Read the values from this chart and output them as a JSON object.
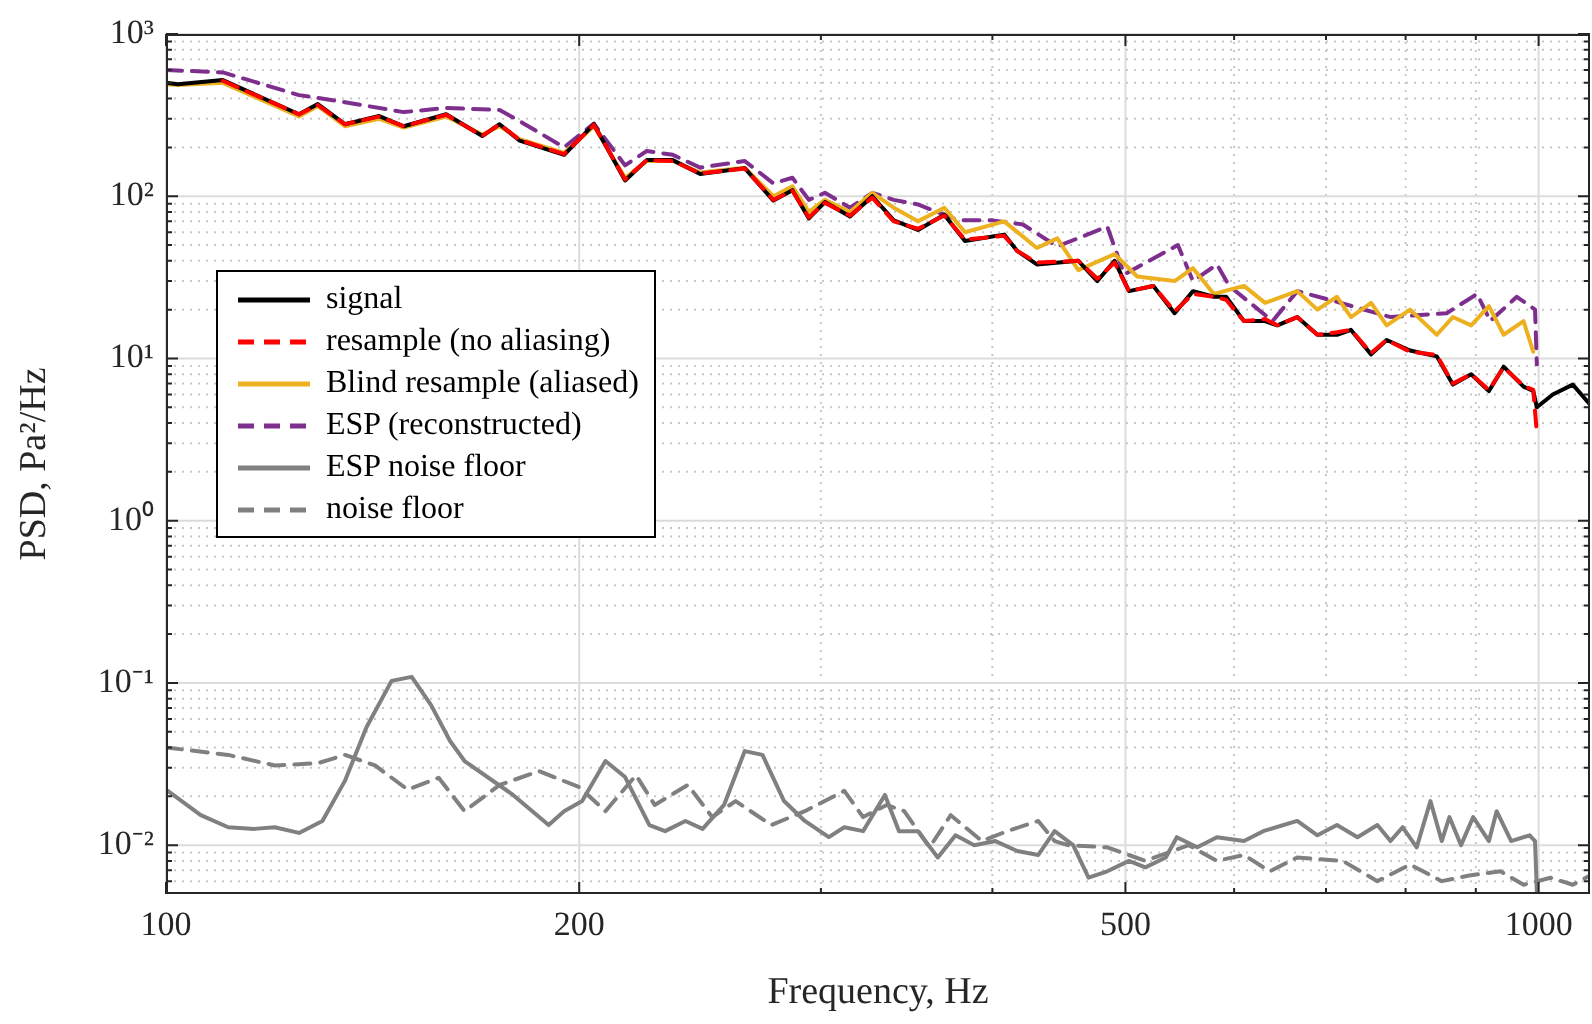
{
  "chart_data": {
    "type": "line",
    "xlabel": "Frequency, Hz",
    "ylabel": "PSD, Pa²/Hz",
    "log": "xy",
    "grid": true,
    "legend": "left",
    "marker": "none",
    "xlim": [
      100,
      1090
    ],
    "ylim": [
      0.005,
      1000
    ],
    "xticks": [
      100,
      200,
      {
        "value": 300,
        "label": null
      },
      {
        "value": 400,
        "label": null
      },
      500,
      {
        "value": 600,
        "label": null
      },
      {
        "value": 700,
        "label": null
      },
      {
        "value": 800,
        "label": null
      },
      {
        "value": 900,
        "label": null
      },
      1000
    ],
    "yticks": [
      {
        "value": 0.006,
        "label": null
      },
      {
        "value": 0.007,
        "label": null
      },
      {
        "value": 0.008,
        "label": null
      },
      {
        "value": 0.009,
        "label": null
      },
      {
        "value": 0.01,
        "label": "10⁻²"
      },
      {
        "value": 0.02,
        "label": null
      },
      {
        "value": 0.03,
        "label": null
      },
      {
        "value": 0.04,
        "label": null
      },
      {
        "value": 0.05,
        "label": null
      },
      {
        "value": 0.06,
        "label": null
      },
      {
        "value": 0.07,
        "label": null
      },
      {
        "value": 0.08,
        "label": null
      },
      {
        "value": 0.09,
        "label": null
      },
      {
        "value": 0.1,
        "label": "10⁻¹"
      },
      {
        "value": 0.2,
        "label": null
      },
      {
        "value": 0.3,
        "label": null
      },
      {
        "value": 0.4,
        "label": null
      },
      {
        "value": 0.5,
        "label": null
      },
      {
        "value": 0.6,
        "label": null
      },
      {
        "value": 0.7,
        "label": null
      },
      {
        "value": 0.8,
        "label": null
      },
      {
        "value": 0.9,
        "label": null
      },
      {
        "value": 1,
        "label": "10⁰"
      },
      {
        "value": 2,
        "label": null
      },
      {
        "value": 3,
        "label": null
      },
      {
        "value": 4,
        "label": null
      },
      {
        "value": 5,
        "label": null
      },
      {
        "value": 6,
        "label": null
      },
      {
        "value": 7,
        "label": null
      },
      {
        "value": 8,
        "label": null
      },
      {
        "value": 9,
        "label": null
      },
      {
        "value": 10,
        "label": "10¹"
      },
      {
        "value": 20,
        "label": null
      },
      {
        "value": 30,
        "label": null
      },
      {
        "value": 40,
        "label": null
      },
      {
        "value": 50,
        "label": null
      },
      {
        "value": 60,
        "label": null
      },
      {
        "value": 70,
        "label": null
      },
      {
        "value": 80,
        "label": null
      },
      {
        "value": 90,
        "label": null
      },
      {
        "value": 100,
        "label": "10²"
      },
      {
        "value": 200,
        "label": null
      },
      {
        "value": 300,
        "label": null
      },
      {
        "value": 400,
        "label": null
      },
      {
        "value": 500,
        "label": null
      },
      {
        "value": 600,
        "label": null
      },
      {
        "value": 700,
        "label": null
      },
      {
        "value": 800,
        "label": null
      },
      {
        "value": 900,
        "label": null
      },
      {
        "value": 1000,
        "label": "10³"
      }
    ],
    "series": [
      {
        "name": "signal",
        "color": "#000000",
        "line_style": "solid",
        "x": [
          100,
          102,
          110,
          125,
          129,
          135,
          143,
          149,
          160,
          170,
          175,
          181,
          195,
          205,
          216,
          224,
          234,
          245,
          264,
          277,
          286,
          294,
          302,
          315,
          327,
          339,
          353,
          369,
          382,
          408,
          417,
          431,
          462,
          477,
          491,
          503,
          524,
          543,
          560,
          580,
          592,
          610,
          632,
          645,
          667,
          690,
          713,
          730,
          755,
          775,
          806,
          843,
          866,
          893,
          920,
          943,
          975,
          991,
          997,
          1024,
          1059,
          1090
        ],
        "values": [
          500,
          490,
          520,
          320,
          370,
          278,
          312,
          270,
          320,
          235,
          278,
          220,
          180,
          278,
          125,
          167,
          167,
          137,
          149,
          94,
          109,
          73,
          92,
          75,
          100,
          71,
          62,
          77,
          53,
          58,
          46,
          38,
          40,
          30,
          40,
          26,
          28,
          19,
          26,
          24,
          24,
          17,
          17,
          16,
          18,
          14,
          14,
          15,
          10.6,
          13,
          11.2,
          10.3,
          6.9,
          8,
          6.3,
          8.9,
          6.7,
          6.3,
          5,
          6,
          6.9,
          5.2
        ]
      },
      {
        "name": "resample (no aliasing)",
        "color": "#ff0000",
        "line_style": "dashed",
        "x": [
          110,
          125,
          129,
          135,
          143,
          149,
          160,
          170,
          175,
          181,
          195,
          205,
          216,
          224,
          234,
          245,
          264,
          277,
          286,
          294,
          302,
          315,
          327,
          339,
          353,
          369,
          382,
          408,
          417,
          431,
          462,
          477,
          491,
          503,
          524,
          543,
          560,
          580,
          592,
          610,
          632,
          645,
          667,
          690,
          713,
          730,
          755,
          775,
          806,
          843,
          866,
          893,
          920,
          943,
          975,
          991,
          997
        ],
        "values": [
          515,
          320,
          365,
          278,
          310,
          270,
          318,
          235,
          278,
          222,
          182,
          275,
          127,
          167,
          165,
          138,
          148,
          95,
          108,
          74,
          91,
          76,
          98,
          70,
          63,
          76,
          54,
          57,
          46,
          39,
          40,
          31,
          39,
          26,
          28,
          19.5,
          25,
          24,
          23,
          17,
          17.5,
          16,
          18,
          14,
          14.5,
          15,
          10.8,
          13,
          11,
          10.5,
          7,
          8,
          6.4,
          8.8,
          6.8,
          6.4,
          3.5
        ]
      },
      {
        "name": "Blind resample (aliased)",
        "color": "#edb120",
        "line_style": "solid",
        "x": [
          100,
          102,
          110,
          125,
          129,
          135,
          143,
          149,
          160,
          170,
          175,
          181,
          195,
          205,
          216,
          224,
          234,
          245,
          264,
          277,
          286,
          294,
          302,
          315,
          327,
          339,
          353,
          369,
          382,
          408,
          431,
          446,
          462,
          491,
          510,
          543,
          560,
          580,
          610,
          632,
          667,
          690,
          713,
          730,
          755,
          775,
          806,
          843,
          866,
          893,
          920,
          943,
          975,
          991
        ],
        "values": [
          490,
          485,
          500,
          310,
          360,
          270,
          300,
          265,
          310,
          240,
          270,
          225,
          185,
          270,
          130,
          165,
          165,
          140,
          150,
          100,
          115,
          80,
          95,
          80,
          105,
          85,
          70,
          85,
          60,
          70,
          48,
          55,
          35,
          44,
          32,
          30,
          36,
          25,
          28,
          22,
          26,
          20,
          24,
          18,
          22,
          16,
          20,
          14,
          18,
          16,
          21,
          14,
          17,
          11
        ]
      },
      {
        "name": "ESP (reconstructed)",
        "color": "#7e2f8e",
        "line_style": "dashed",
        "x": [
          100,
          110,
          125,
          135,
          149,
          160,
          175,
          181,
          195,
          205,
          216,
          224,
          234,
          245,
          264,
          277,
          286,
          294,
          302,
          315,
          327,
          339,
          353,
          378,
          400,
          421,
          446,
          485,
          499,
          546,
          560,
          583,
          595,
          640,
          667,
          704,
          780,
          857,
          902,
          922,
          964,
          994,
          997
        ],
        "values": [
          600,
          580,
          420,
          380,
          330,
          350,
          340,
          290,
          200,
          280,
          155,
          190,
          180,
          150,
          165,
          120,
          130,
          95,
          105,
          85,
          105,
          95,
          89,
          71,
          71,
          67,
          49,
          65,
          33,
          50,
          30,
          38,
          28,
          17,
          26,
          23,
          18,
          19,
          25,
          17,
          24,
          20,
          9.2
        ]
      },
      {
        "name": "ESP noise floor",
        "color": "#808080",
        "line_style": "solid",
        "x": [
          100,
          106,
          111,
          116,
          120,
          125,
          130,
          135,
          140,
          146,
          151,
          156,
          161,
          165,
          179,
          190,
          195,
          201,
          209,
          216,
          225,
          231,
          239,
          246,
          255,
          264,
          272,
          282,
          292,
          304,
          312,
          322,
          334,
          342,
          353,
          365,
          376,
          388,
          402,
          417,
          432,
          444,
          458,
          470,
          485,
          503,
          517,
          535,
          545,
          564,
          583,
          610,
          630,
          667,
          690,
          713,
          738,
          763,
          780,
          796,
          815,
          834,
          850,
          861,
          878,
          896,
          920,
          932,
          955,
          985,
          994,
          997
        ],
        "values": [
          0.022,
          0.0153,
          0.0129,
          0.0126,
          0.0129,
          0.0119,
          0.0141,
          0.0249,
          0.0535,
          0.103,
          0.109,
          0.073,
          0.044,
          0.033,
          0.0204,
          0.0133,
          0.0162,
          0.0187,
          0.033,
          0.0263,
          0.0133,
          0.0122,
          0.0141,
          0.0126,
          0.0177,
          0.038,
          0.036,
          0.0187,
          0.0141,
          0.0112,
          0.0129,
          0.0122,
          0.0204,
          0.0122,
          0.0122,
          0.0084,
          0.0115,
          0.01,
          0.0106,
          0.0092,
          0.0087,
          0.0122,
          0.01,
          0.0063,
          0.0069,
          0.008,
          0.0073,
          0.0084,
          0.0112,
          0.0097,
          0.0112,
          0.0106,
          0.0122,
          0.0141,
          0.0115,
          0.0133,
          0.0112,
          0.0133,
          0.0106,
          0.0129,
          0.0097,
          0.0187,
          0.0106,
          0.0149,
          0.01,
          0.0149,
          0.0106,
          0.0162,
          0.0106,
          0.0115,
          0.0106,
          0.0052
        ]
      },
      {
        "name": "noise floor",
        "color": "#808080",
        "line_style": "dashed",
        "x": [
          100,
          111,
          120,
          129,
          135,
          142,
          150,
          158,
          165,
          175,
          187,
          200,
          209,
          220,
          227,
          240,
          250,
          260,
          276,
          292,
          312,
          322,
          335,
          345,
          360,
          373,
          393,
          410,
          432,
          444,
          454,
          485,
          517,
          556,
          583,
          610,
          637,
          667,
          720,
          763,
          806,
          850,
          890,
          938,
          975,
          1020,
          1059,
          1090
        ],
        "values": [
          0.04,
          0.036,
          0.031,
          0.032,
          0.036,
          0.031,
          0.022,
          0.026,
          0.0162,
          0.0235,
          0.0286,
          0.0228,
          0.0162,
          0.027,
          0.0177,
          0.0235,
          0.0149,
          0.0187,
          0.0133,
          0.0162,
          0.0216,
          0.0149,
          0.0177,
          0.0162,
          0.0097,
          0.0153,
          0.0106,
          0.0122,
          0.0141,
          0.0106,
          0.01,
          0.0097,
          0.008,
          0.01,
          0.008,
          0.0087,
          0.0069,
          0.0084,
          0.008,
          0.006,
          0.0076,
          0.006,
          0.0065,
          0.0069,
          0.0057,
          0.0063,
          0.0057,
          0.0065
        ]
      }
    ]
  }
}
